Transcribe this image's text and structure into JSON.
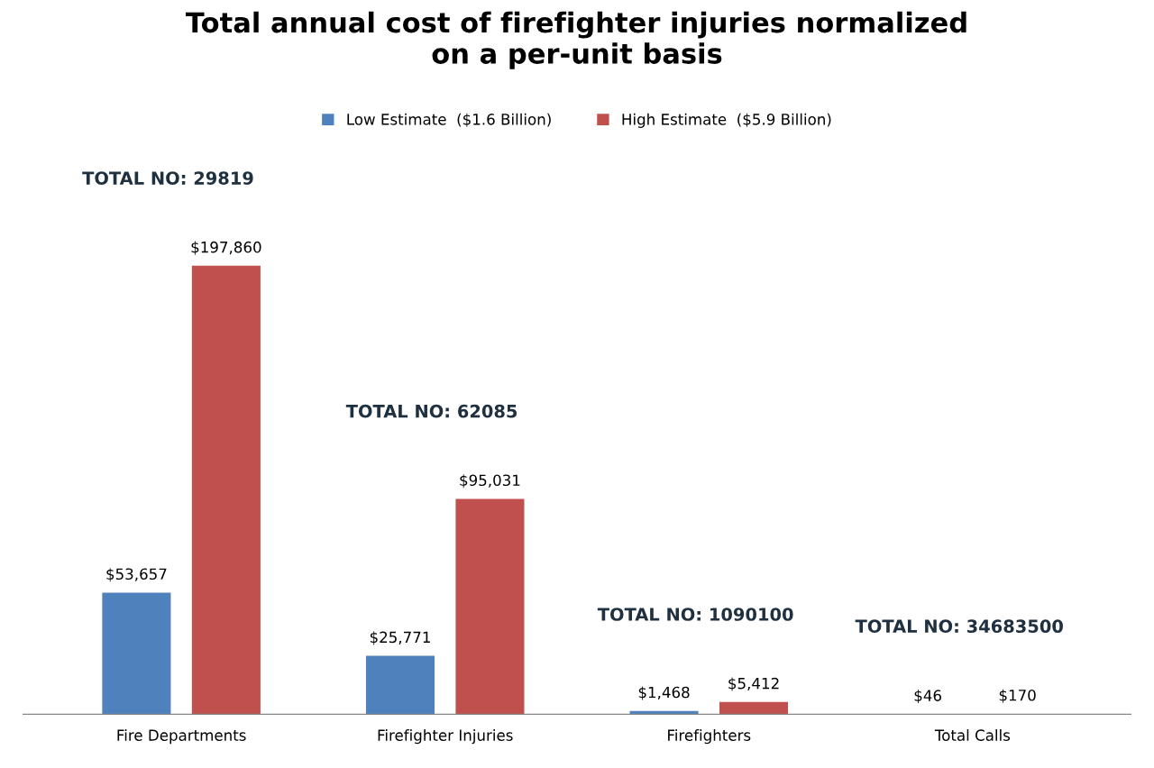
{
  "chart_data": {
    "type": "bar",
    "title": "Total annual cost of firefighter injuries normalized\non a per-unit basis",
    "categories": [
      "Fire Departments",
      "Firefighter Injuries",
      "Firefighters",
      "Total Calls"
    ],
    "series": [
      {
        "name": "Low Estimate  ($1.6 Billion)",
        "color": "#4f81bd",
        "values": [
          53657,
          25771,
          1468,
          46
        ],
        "value_labels": [
          "$53,657",
          "$25,771",
          "$1,468",
          "$46"
        ]
      },
      {
        "name": "High Estimate  ($5.9 Billion)",
        "color": "#c0504d",
        "values": [
          197860,
          95031,
          5412,
          170
        ],
        "value_labels": [
          "$197,860",
          "$95,031",
          "$5,412",
          "$170"
        ]
      }
    ],
    "annotations": [
      "TOTAL NO: 29819",
      "TOTAL NO: 62085",
      "TOTAL NO: 1090100",
      "TOTAL NO: 34683500"
    ],
    "legend": "top",
    "grid": false
  }
}
